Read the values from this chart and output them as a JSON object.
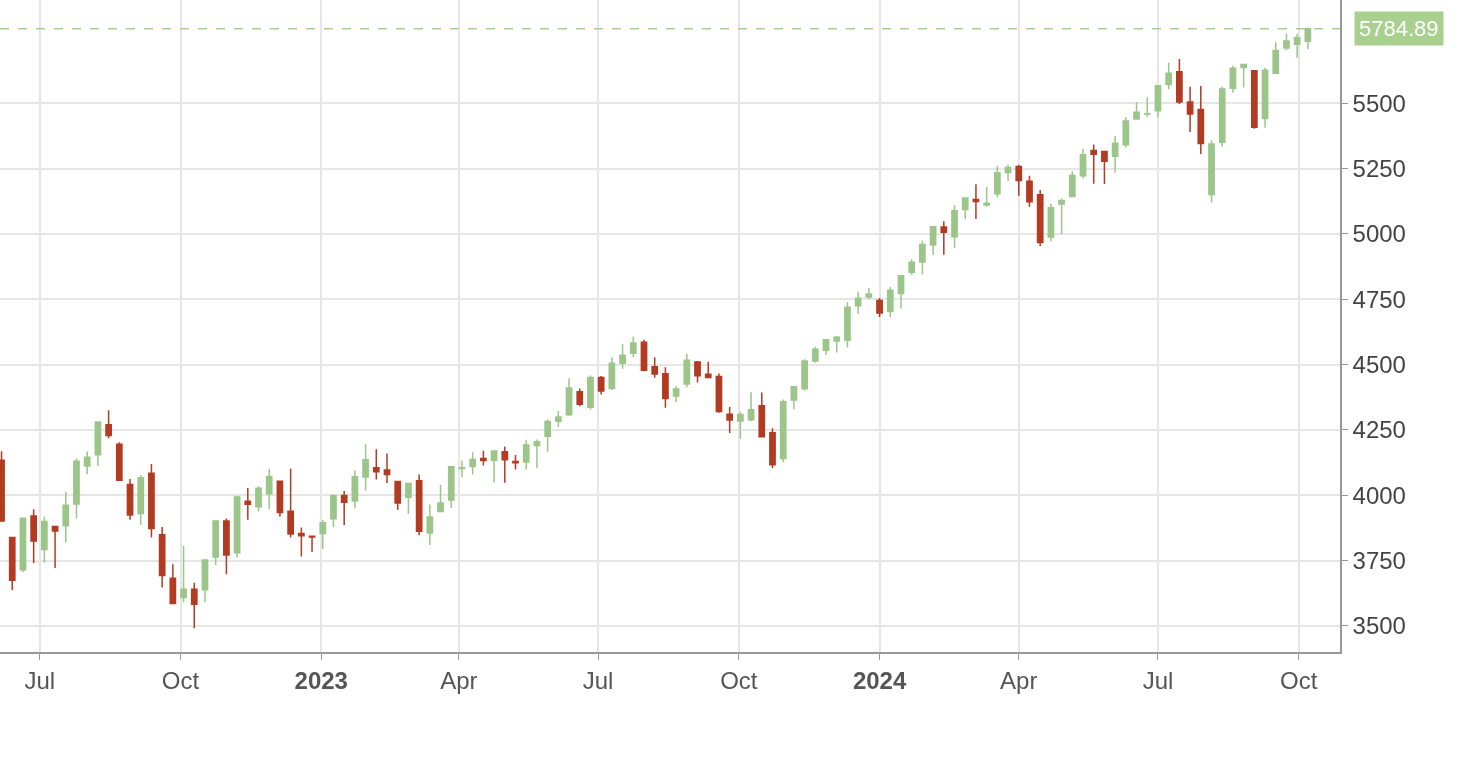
{
  "chart_data": {
    "type": "candlestick",
    "x": [
      "2022-06-06",
      "2022-06-13",
      "2022-06-20",
      "2022-06-27",
      "2022-07-04",
      "2022-07-11",
      "2022-07-18",
      "2022-07-25",
      "2022-08-01",
      "2022-08-08",
      "2022-08-15",
      "2022-08-22",
      "2022-08-29",
      "2022-09-05",
      "2022-09-12",
      "2022-09-19",
      "2022-09-26",
      "2022-10-03",
      "2022-10-10",
      "2022-10-17",
      "2022-10-24",
      "2022-10-31",
      "2022-11-07",
      "2022-11-14",
      "2022-11-21",
      "2022-11-28",
      "2022-12-05",
      "2022-12-12",
      "2022-12-19",
      "2022-12-26",
      "2023-01-02",
      "2023-01-09",
      "2023-01-16",
      "2023-01-23",
      "2023-01-30",
      "2023-02-06",
      "2023-02-13",
      "2023-02-20",
      "2023-02-27",
      "2023-03-06",
      "2023-03-13",
      "2023-03-20",
      "2023-03-27",
      "2023-04-03",
      "2023-04-10",
      "2023-04-17",
      "2023-04-24",
      "2023-05-01",
      "2023-05-08",
      "2023-05-15",
      "2023-05-22",
      "2023-05-29",
      "2023-06-05",
      "2023-06-12",
      "2023-06-19",
      "2023-06-26",
      "2023-07-03",
      "2023-07-10",
      "2023-07-17",
      "2023-07-24",
      "2023-07-31",
      "2023-08-07",
      "2023-08-14",
      "2023-08-21",
      "2023-08-28",
      "2023-09-04",
      "2023-09-11",
      "2023-09-18",
      "2023-09-25",
      "2023-10-02",
      "2023-10-09",
      "2023-10-16",
      "2023-10-23",
      "2023-10-30",
      "2023-11-06",
      "2023-11-13",
      "2023-11-20",
      "2023-11-27",
      "2023-12-04",
      "2023-12-11",
      "2023-12-18",
      "2023-12-25",
      "2024-01-01",
      "2024-01-08",
      "2024-01-15",
      "2024-01-22",
      "2024-01-29",
      "2024-02-05",
      "2024-02-12",
      "2024-02-19",
      "2024-02-26",
      "2024-03-04",
      "2024-03-11",
      "2024-03-18",
      "2024-03-25",
      "2024-04-01",
      "2024-04-08",
      "2024-04-15",
      "2024-04-22",
      "2024-04-29",
      "2024-05-06",
      "2024-05-13",
      "2024-05-20",
      "2024-05-27",
      "2024-06-03",
      "2024-06-10",
      "2024-06-17",
      "2024-06-24",
      "2024-07-01",
      "2024-07-08",
      "2024-07-15",
      "2024-07-22",
      "2024-07-29",
      "2024-08-05",
      "2024-08-12",
      "2024-08-19",
      "2024-08-26",
      "2024-09-02",
      "2024-09-09",
      "2024-09-16",
      "2024-09-23",
      "2024-09-30",
      "2024-10-07"
    ],
    "ohlc": [
      [
        4134,
        4168,
        3900,
        3901
      ],
      [
        3838,
        3838,
        3637,
        3675
      ],
      [
        3715,
        3913,
        3705,
        3912
      ],
      [
        3920,
        3946,
        3741,
        3825
      ],
      [
        3792,
        3918,
        3742,
        3899
      ],
      [
        3880,
        3880,
        3721,
        3863
      ],
      [
        3883,
        4012,
        3819,
        3962
      ],
      [
        3966,
        4140,
        3911,
        4130
      ],
      [
        4112,
        4167,
        4080,
        4145
      ],
      [
        4155,
        4280,
        4112,
        4280
      ],
      [
        4270,
        4325,
        4218,
        4228
      ],
      [
        4195,
        4203,
        4057,
        4057
      ],
      [
        4041,
        4062,
        3906,
        3924
      ],
      [
        3930,
        4076,
        3887,
        4067
      ],
      [
        4084,
        4119,
        3838,
        3873
      ],
      [
        3849,
        3878,
        3647,
        3693
      ],
      [
        3682,
        3736,
        3584,
        3586
      ],
      [
        3609,
        3806,
        3590,
        3640
      ],
      [
        3640,
        3665,
        3491,
        3583
      ],
      [
        3638,
        3752,
        3590,
        3752
      ],
      [
        3764,
        3905,
        3733,
        3901
      ],
      [
        3901,
        3911,
        3698,
        3771
      ],
      [
        3780,
        3999,
        3762,
        3993
      ],
      [
        3977,
        4028,
        3906,
        3965
      ],
      [
        3956,
        4034,
        3938,
        4027
      ],
      [
        4006,
        4100,
        3946,
        4072
      ],
      [
        4053,
        4054,
        3918,
        3934
      ],
      [
        3939,
        4101,
        3838,
        3852
      ],
      [
        3853,
        3876,
        3765,
        3845
      ],
      [
        3843,
        3846,
        3783,
        3840
      ],
      [
        3853,
        3906,
        3795,
        3895
      ],
      [
        3910,
        4003,
        3877,
        3999
      ],
      [
        3999,
        4016,
        3886,
        3973
      ],
      [
        3978,
        4095,
        3949,
        4071
      ],
      [
        4070,
        4195,
        4018,
        4136
      ],
      [
        4105,
        4176,
        4060,
        4090
      ],
      [
        4096,
        4160,
        4047,
        4079
      ],
      [
        4052,
        4052,
        3944,
        3970
      ],
      [
        3992,
        4048,
        3928,
        4045
      ],
      [
        4055,
        4079,
        3847,
        3862
      ],
      [
        3855,
        3964,
        3809,
        3917
      ],
      [
        3938,
        4040,
        3937,
        3970
      ],
      [
        3982,
        4110,
        3951,
        4109
      ],
      [
        4102,
        4133,
        4069,
        4105
      ],
      [
        4110,
        4164,
        4079,
        4137
      ],
      [
        4140,
        4170,
        4114,
        4133
      ],
      [
        4134,
        4170,
        4049,
        4169
      ],
      [
        4166,
        4186,
        4048,
        4136
      ],
      [
        4129,
        4154,
        4098,
        4124
      ],
      [
        4127,
        4212,
        4098,
        4192
      ],
      [
        4190,
        4213,
        4103,
        4205
      ],
      [
        4226,
        4291,
        4166,
        4282
      ],
      [
        4283,
        4322,
        4261,
        4299
      ],
      [
        4308,
        4448,
        4304,
        4410
      ],
      [
        4396,
        4408,
        4340,
        4348
      ],
      [
        4337,
        4458,
        4328,
        4450
      ],
      [
        4450,
        4456,
        4385,
        4399
      ],
      [
        4409,
        4528,
        4402,
        4505
      ],
      [
        4505,
        4578,
        4484,
        4536
      ],
      [
        4543,
        4607,
        4528,
        4582
      ],
      [
        4585,
        4595,
        4474,
        4478
      ],
      [
        4492,
        4528,
        4449,
        4464
      ],
      [
        4465,
        4490,
        4335,
        4370
      ],
      [
        4380,
        4418,
        4356,
        4406
      ],
      [
        4426,
        4541,
        4413,
        4516
      ],
      [
        4510,
        4514,
        4431,
        4457
      ],
      [
        4463,
        4511,
        4448,
        4450
      ],
      [
        4454,
        4466,
        4316,
        4320
      ],
      [
        4310,
        4338,
        4238,
        4288
      ],
      [
        4284,
        4319,
        4216,
        4309
      ],
      [
        4289,
        4394,
        4284,
        4327
      ],
      [
        4342,
        4393,
        4223,
        4224
      ],
      [
        4239,
        4256,
        4104,
        4117
      ],
      [
        4140,
        4366,
        4127,
        4358
      ],
      [
        4364,
        4416,
        4329,
        4415
      ],
      [
        4407,
        4520,
        4401,
        4514
      ],
      [
        4514,
        4568,
        4508,
        4559
      ],
      [
        4555,
        4596,
        4537,
        4595
      ],
      [
        4590,
        4609,
        4546,
        4604
      ],
      [
        4593,
        4739,
        4565,
        4719
      ],
      [
        4725,
        4779,
        4694,
        4754
      ],
      [
        4758,
        4793,
        4751,
        4770
      ],
      [
        4745,
        4755,
        4682,
        4697
      ],
      [
        4703,
        4798,
        4682,
        4784
      ],
      [
        4772,
        4842,
        4714,
        4840
      ],
      [
        4853,
        4903,
        4842,
        4891
      ],
      [
        4892,
        4975,
        4845,
        4959
      ],
      [
        4957,
        5030,
        4919,
        5027
      ],
      [
        5026,
        5048,
        4920,
        5006
      ],
      [
        4989,
        5111,
        4946,
        5089
      ],
      [
        5093,
        5140,
        5057,
        5137
      ],
      [
        5132,
        5190,
        5057,
        5124
      ],
      [
        5111,
        5179,
        5104,
        5117
      ],
      [
        5154,
        5261,
        5140,
        5234
      ],
      [
        5235,
        5265,
        5203,
        5254
      ],
      [
        5258,
        5264,
        5146,
        5204
      ],
      [
        5201,
        5222,
        5104,
        5123
      ],
      [
        5150,
        5168,
        4954,
        4967
      ],
      [
        4988,
        5114,
        4971,
        5100
      ],
      [
        5114,
        5135,
        4999,
        5128
      ],
      [
        5143,
        5240,
        5142,
        5223
      ],
      [
        5222,
        5326,
        5212,
        5303
      ],
      [
        5319,
        5342,
        5192,
        5305
      ],
      [
        5315,
        5315,
        5191,
        5278
      ],
      [
        5297,
        5375,
        5234,
        5347
      ],
      [
        5341,
        5447,
        5331,
        5432
      ],
      [
        5440,
        5505,
        5440,
        5465
      ],
      [
        5459,
        5523,
        5448,
        5460
      ],
      [
        5471,
        5570,
        5446,
        5567
      ],
      [
        5572,
        5655,
        5553,
        5615
      ],
      [
        5620,
        5669,
        5497,
        5505
      ],
      [
        5505,
        5563,
        5390,
        5459
      ],
      [
        5476,
        5566,
        5306,
        5346
      ],
      [
        5151,
        5358,
        5119,
        5344
      ],
      [
        5351,
        5563,
        5334,
        5554
      ],
      [
        5557,
        5643,
        5540,
        5634
      ],
      [
        5637,
        5651,
        5560,
        5648
      ],
      [
        5624,
        5626,
        5402,
        5408
      ],
      [
        5442,
        5636,
        5406,
        5626
      ],
      [
        5615,
        5733,
        5614,
        5702
      ],
      [
        5711,
        5767,
        5703,
        5738
      ],
      [
        5726,
        5765,
        5674,
        5751
      ],
      [
        5737,
        5790,
        5707,
        5784.89
      ]
    ],
    "xlim": [
      "2022-06-05",
      "2024-10-28"
    ],
    "xticks": [
      {
        "value": "2022-07-01",
        "label": "Jul"
      },
      {
        "value": "2022-10-01",
        "label": "Oct"
      },
      {
        "value": "2023-01-01",
        "label": "2023"
      },
      {
        "value": "2023-04-01",
        "label": "Apr"
      },
      {
        "value": "2023-07-01",
        "label": "Jul"
      },
      {
        "value": "2023-10-01",
        "label": "Oct"
      },
      {
        "value": "2024-01-01",
        "label": "2024"
      },
      {
        "value": "2024-04-01",
        "label": "Apr"
      },
      {
        "value": "2024-07-01",
        "label": "Jul"
      },
      {
        "value": "2024-10-01",
        "label": "Oct"
      }
    ],
    "ylim": [
      3400,
      5895
    ],
    "yticks": [
      3500,
      3750,
      4000,
      4250,
      4500,
      4750,
      5000,
      5250,
      5500
    ],
    "grid": true,
    "ref_lines": [
      {
        "axis": "y",
        "value": 5784.89,
        "label": "5784.89",
        "color": "#a9d08e",
        "line_style": "dashed"
      }
    ]
  }
}
